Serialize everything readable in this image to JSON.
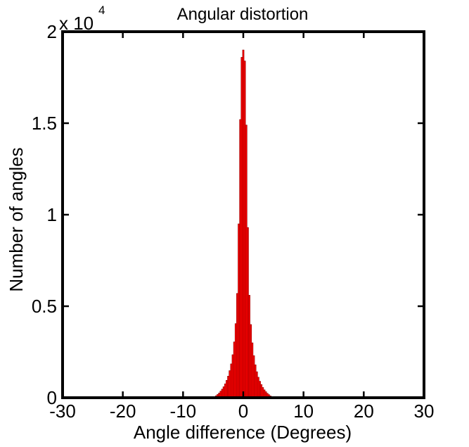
{
  "chart_data": {
    "type": "bar",
    "title": "Angular distortion",
    "xlabel": "Angle difference (Degrees)",
    "ylabel": "Number of angles",
    "y_multiplier_label": "x 10",
    "y_multiplier_exponent": "4",
    "xlim": [
      -30,
      30
    ],
    "ylim": [
      0,
      20000
    ],
    "x_ticks": [
      -30,
      -20,
      -10,
      0,
      10,
      20,
      30
    ],
    "y_ticks": [
      0,
      5000,
      10000,
      15000,
      20000
    ],
    "y_tick_labels": [
      "0",
      "0.5",
      "1",
      "1.5",
      "2"
    ],
    "x_tick_labels": [
      "-30",
      "-20",
      "-10",
      "0",
      "10",
      "20",
      "30"
    ],
    "grid": false,
    "series": [
      {
        "color": "#ff0000",
        "edge_color": "#8b0000",
        "x": [
          -5.0,
          -4.75,
          -4.5,
          -4.25,
          -4.0,
          -3.75,
          -3.5,
          -3.25,
          -3.0,
          -2.75,
          -2.5,
          -2.25,
          -2.0,
          -1.75,
          -1.5,
          -1.25,
          -1.0,
          -0.75,
          -0.5,
          -0.25,
          0.0,
          0.25,
          0.5,
          0.75,
          1.0,
          1.25,
          1.5,
          1.75,
          2.0,
          2.25,
          2.5,
          2.75,
          3.0,
          3.25,
          3.5,
          3.75,
          4.0,
          4.25,
          4.5,
          4.75,
          5.0
        ],
        "values": [
          30,
          60,
          110,
          180,
          260,
          360,
          470,
          600,
          760,
          950,
          1180,
          1480,
          1850,
          2350,
          3050,
          4050,
          5700,
          9500,
          15200,
          18600,
          19000,
          18400,
          14900,
          9300,
          5600,
          4000,
          3000,
          2300,
          1800,
          1420,
          1120,
          900,
          720,
          560,
          430,
          330,
          240,
          170,
          100,
          55,
          25
        ],
        "bin_width": 0.25
      }
    ]
  }
}
